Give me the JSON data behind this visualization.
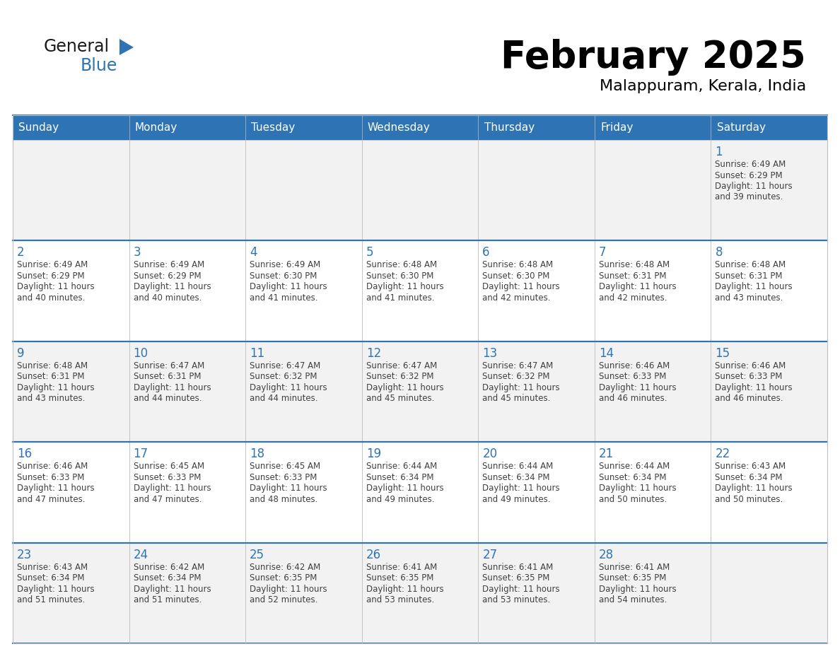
{
  "title": "February 2025",
  "subtitle": "Malappuram, Kerala, India",
  "header_bg": "#2E74B5",
  "header_text": "#FFFFFF",
  "cell_bg_white": "#FFFFFF",
  "cell_bg_gray": "#F2F2F2",
  "border_color_blue": "#2E74B5",
  "border_color_gray": "#C0C0C0",
  "day_names": [
    "Sunday",
    "Monday",
    "Tuesday",
    "Wednesday",
    "Thursday",
    "Friday",
    "Saturday"
  ],
  "title_color": "#000000",
  "subtitle_color": "#000000",
  "day_num_color": "#2E74B5",
  "info_color": "#404040",
  "calendar": [
    [
      null,
      null,
      null,
      null,
      null,
      null,
      {
        "day": 1,
        "sunrise": "6:49 AM",
        "sunset": "6:29 PM",
        "daylight_extra": "39 minutes."
      }
    ],
    [
      {
        "day": 2,
        "sunrise": "6:49 AM",
        "sunset": "6:29 PM",
        "daylight_extra": "40 minutes."
      },
      {
        "day": 3,
        "sunrise": "6:49 AM",
        "sunset": "6:29 PM",
        "daylight_extra": "40 minutes."
      },
      {
        "day": 4,
        "sunrise": "6:49 AM",
        "sunset": "6:30 PM",
        "daylight_extra": "41 minutes."
      },
      {
        "day": 5,
        "sunrise": "6:48 AM",
        "sunset": "6:30 PM",
        "daylight_extra": "41 minutes."
      },
      {
        "day": 6,
        "sunrise": "6:48 AM",
        "sunset": "6:30 PM",
        "daylight_extra": "42 minutes."
      },
      {
        "day": 7,
        "sunrise": "6:48 AM",
        "sunset": "6:31 PM",
        "daylight_extra": "42 minutes."
      },
      {
        "day": 8,
        "sunrise": "6:48 AM",
        "sunset": "6:31 PM",
        "daylight_extra": "43 minutes."
      }
    ],
    [
      {
        "day": 9,
        "sunrise": "6:48 AM",
        "sunset": "6:31 PM",
        "daylight_extra": "43 minutes."
      },
      {
        "day": 10,
        "sunrise": "6:47 AM",
        "sunset": "6:31 PM",
        "daylight_extra": "44 minutes."
      },
      {
        "day": 11,
        "sunrise": "6:47 AM",
        "sunset": "6:32 PM",
        "daylight_extra": "44 minutes."
      },
      {
        "day": 12,
        "sunrise": "6:47 AM",
        "sunset": "6:32 PM",
        "daylight_extra": "45 minutes."
      },
      {
        "day": 13,
        "sunrise": "6:47 AM",
        "sunset": "6:32 PM",
        "daylight_extra": "45 minutes."
      },
      {
        "day": 14,
        "sunrise": "6:46 AM",
        "sunset": "6:33 PM",
        "daylight_extra": "46 minutes."
      },
      {
        "day": 15,
        "sunrise": "6:46 AM",
        "sunset": "6:33 PM",
        "daylight_extra": "46 minutes."
      }
    ],
    [
      {
        "day": 16,
        "sunrise": "6:46 AM",
        "sunset": "6:33 PM",
        "daylight_extra": "47 minutes."
      },
      {
        "day": 17,
        "sunrise": "6:45 AM",
        "sunset": "6:33 PM",
        "daylight_extra": "47 minutes."
      },
      {
        "day": 18,
        "sunrise": "6:45 AM",
        "sunset": "6:33 PM",
        "daylight_extra": "48 minutes."
      },
      {
        "day": 19,
        "sunrise": "6:44 AM",
        "sunset": "6:34 PM",
        "daylight_extra": "49 minutes."
      },
      {
        "day": 20,
        "sunrise": "6:44 AM",
        "sunset": "6:34 PM",
        "daylight_extra": "49 minutes."
      },
      {
        "day": 21,
        "sunrise": "6:44 AM",
        "sunset": "6:34 PM",
        "daylight_extra": "50 minutes."
      },
      {
        "day": 22,
        "sunrise": "6:43 AM",
        "sunset": "6:34 PM",
        "daylight_extra": "50 minutes."
      }
    ],
    [
      {
        "day": 23,
        "sunrise": "6:43 AM",
        "sunset": "6:34 PM",
        "daylight_extra": "51 minutes."
      },
      {
        "day": 24,
        "sunrise": "6:42 AM",
        "sunset": "6:34 PM",
        "daylight_extra": "51 minutes."
      },
      {
        "day": 25,
        "sunrise": "6:42 AM",
        "sunset": "6:35 PM",
        "daylight_extra": "52 minutes."
      },
      {
        "day": 26,
        "sunrise": "6:41 AM",
        "sunset": "6:35 PM",
        "daylight_extra": "53 minutes."
      },
      {
        "day": 27,
        "sunrise": "6:41 AM",
        "sunset": "6:35 PM",
        "daylight_extra": "53 minutes."
      },
      {
        "day": 28,
        "sunrise": "6:41 AM",
        "sunset": "6:35 PM",
        "daylight_extra": "54 minutes."
      },
      null
    ]
  ]
}
